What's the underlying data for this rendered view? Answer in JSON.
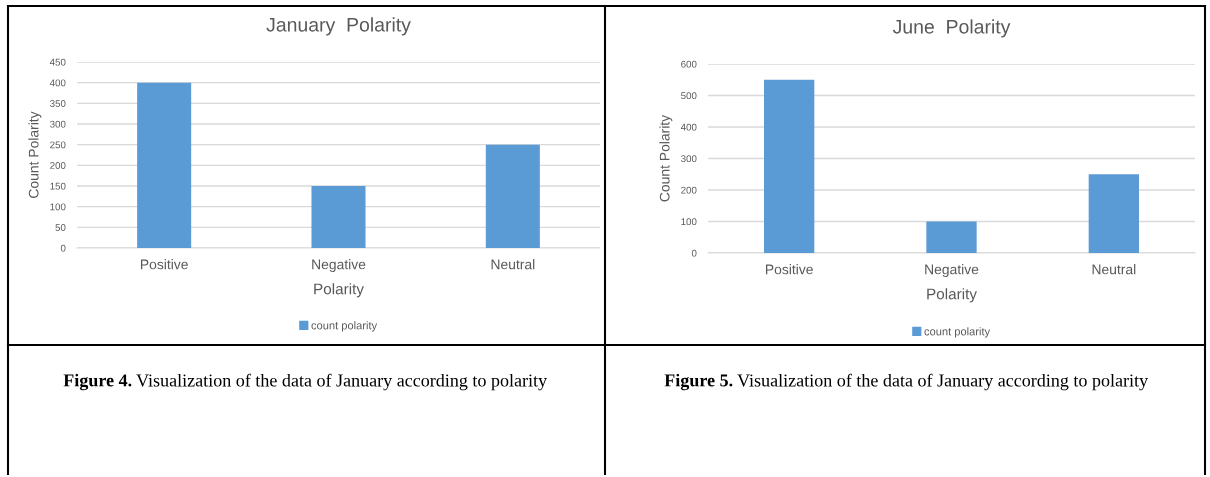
{
  "chart_data": [
    {
      "type": "bar",
      "title": "January  Polarity",
      "xlabel": "Polarity",
      "ylabel": "Count Polarity",
      "categories": [
        "Positive",
        "Negative",
        "Neutral"
      ],
      "series": [
        {
          "name": "count polarity",
          "color": "#5b9bd5",
          "values": [
            400,
            150,
            250
          ]
        }
      ],
      "ylim": [
        0,
        450
      ],
      "yticks": [
        0,
        50,
        100,
        150,
        200,
        250,
        300,
        350,
        400,
        450
      ],
      "grid": "y",
      "legend": "bottom",
      "annotations": [
        "Figure 4. Visualization of the data of January according to polarity"
      ]
    },
    {
      "type": "bar",
      "title": "June  Polarity",
      "xlabel": "Polarity",
      "ylabel": "Count Polarity",
      "categories": [
        "Positive",
        "Negative",
        "Neutral"
      ],
      "series": [
        {
          "name": "count polarity",
          "color": "#5b9bd5",
          "values": [
            550,
            100,
            250
          ]
        }
      ],
      "ylim": [
        0,
        600
      ],
      "yticks": [
        0,
        100,
        200,
        300,
        400,
        500,
        600
      ],
      "grid": "y",
      "legend": "bottom",
      "annotations": [
        "Figure 5. Visualization of the data of January according to polarity"
      ]
    }
  ]
}
